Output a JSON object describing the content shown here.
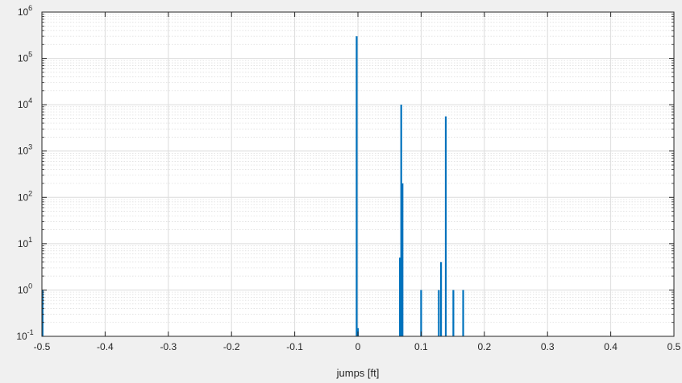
{
  "chart_data": {
    "type": "bar",
    "title": "",
    "xlabel": "jumps [ft]",
    "ylabel": "",
    "yscale": "log",
    "xlim": [
      -0.5,
      0.5
    ],
    "ylim": [
      0.1,
      1000000
    ],
    "grid": "on",
    "minor_grid": "on",
    "bar_color": "#0072bd",
    "x_ticks": [
      -0.5,
      -0.4,
      -0.3,
      -0.2,
      -0.1,
      0,
      0.1,
      0.2,
      0.3,
      0.4,
      0.5
    ],
    "x_tick_labels": [
      "-0.5",
      "-0.4",
      "-0.3",
      "-0.2",
      "-0.1",
      "0",
      "0.1",
      "0.2",
      "0.3",
      "0.4",
      "0.5"
    ],
    "y_ticks": [
      {
        "value": 0.1,
        "base": "10",
        "exp": "-1"
      },
      {
        "value": 1,
        "base": "10",
        "exp": "0"
      },
      {
        "value": 10,
        "base": "10",
        "exp": "1"
      },
      {
        "value": 100,
        "base": "10",
        "exp": "2"
      },
      {
        "value": 1000,
        "base": "10",
        "exp": "3"
      },
      {
        "value": 10000,
        "base": "10",
        "exp": "4"
      },
      {
        "value": 100000,
        "base": "10",
        "exp": "5"
      },
      {
        "value": 1000000,
        "base": "10",
        "exp": "6"
      }
    ],
    "bars": [
      {
        "x": -0.499,
        "y": 1
      },
      {
        "x": -0.002,
        "y": 300000
      },
      {
        "x": 0.0,
        "y": 0.15
      },
      {
        "x": 0.0665,
        "y": 5
      },
      {
        "x": 0.0685,
        "y": 10000
      },
      {
        "x": 0.0705,
        "y": 200
      },
      {
        "x": 0.1,
        "y": 1
      },
      {
        "x": 0.128,
        "y": 1
      },
      {
        "x": 0.1315,
        "y": 4
      },
      {
        "x": 0.139,
        "y": 5600
      },
      {
        "x": 0.151,
        "y": 1
      },
      {
        "x": 0.1665,
        "y": 1
      }
    ]
  }
}
